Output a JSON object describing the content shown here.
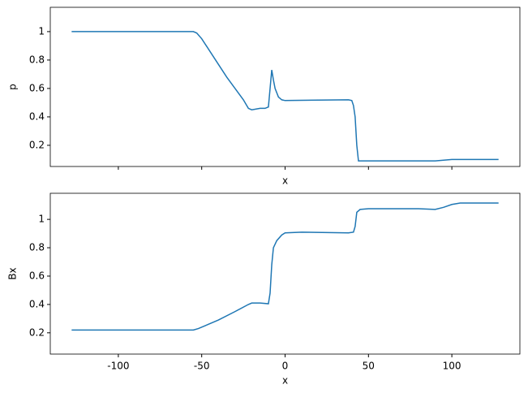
{
  "chart_data": [
    {
      "type": "line",
      "ylabel": "p",
      "xlabel": "x",
      "color": "#1f77b4",
      "x": [
        -128,
        -55,
        -53,
        -50,
        -45,
        -40,
        -35,
        -30,
        -25,
        -22,
        -20,
        -15,
        -12,
        -10,
        -9,
        -8,
        -7,
        -6,
        -4,
        -2,
        0,
        20,
        38,
        40,
        41,
        42,
        43,
        44,
        60,
        90,
        100,
        128
      ],
      "values": [
        1.0,
        1.0,
        0.99,
        0.95,
        0.86,
        0.77,
        0.68,
        0.6,
        0.52,
        0.46,
        0.45,
        0.46,
        0.46,
        0.47,
        0.6,
        0.73,
        0.66,
        0.6,
        0.54,
        0.52,
        0.515,
        0.518,
        0.52,
        0.515,
        0.48,
        0.4,
        0.2,
        0.09,
        0.09,
        0.09,
        0.1,
        0.1
      ],
      "xlim": [
        -140.8,
        140.8
      ],
      "xticks": [
        -100,
        -50,
        0,
        50,
        100
      ],
      "ylim": [
        0.051,
        1.171
      ],
      "yticks": [
        0.2,
        0.4,
        0.6,
        0.8,
        1.0
      ]
    },
    {
      "type": "line",
      "ylabel": "Bx",
      "xlabel": "x",
      "color": "#1f77b4",
      "x": [
        -128,
        -55,
        -52,
        -40,
        -30,
        -22,
        -20,
        -15,
        -10,
        -9,
        -8,
        -7,
        -5,
        -2,
        0,
        10,
        38,
        41,
        42,
        43,
        45,
        50,
        60,
        80,
        90,
        95,
        100,
        105,
        128
      ],
      "values": [
        0.22,
        0.22,
        0.23,
        0.29,
        0.35,
        0.4,
        0.41,
        0.41,
        0.405,
        0.48,
        0.68,
        0.8,
        0.85,
        0.89,
        0.905,
        0.91,
        0.905,
        0.91,
        0.95,
        1.05,
        1.07,
        1.075,
        1.075,
        1.075,
        1.07,
        1.085,
        1.105,
        1.115,
        1.115
      ],
      "xlim": [
        -140.8,
        140.8
      ],
      "xticks": [
        -100,
        -50,
        0,
        50,
        100
      ],
      "ylim": [
        0.05,
        1.184
      ],
      "yticks": [
        0.2,
        0.4,
        0.6,
        0.8,
        1.0
      ]
    }
  ]
}
